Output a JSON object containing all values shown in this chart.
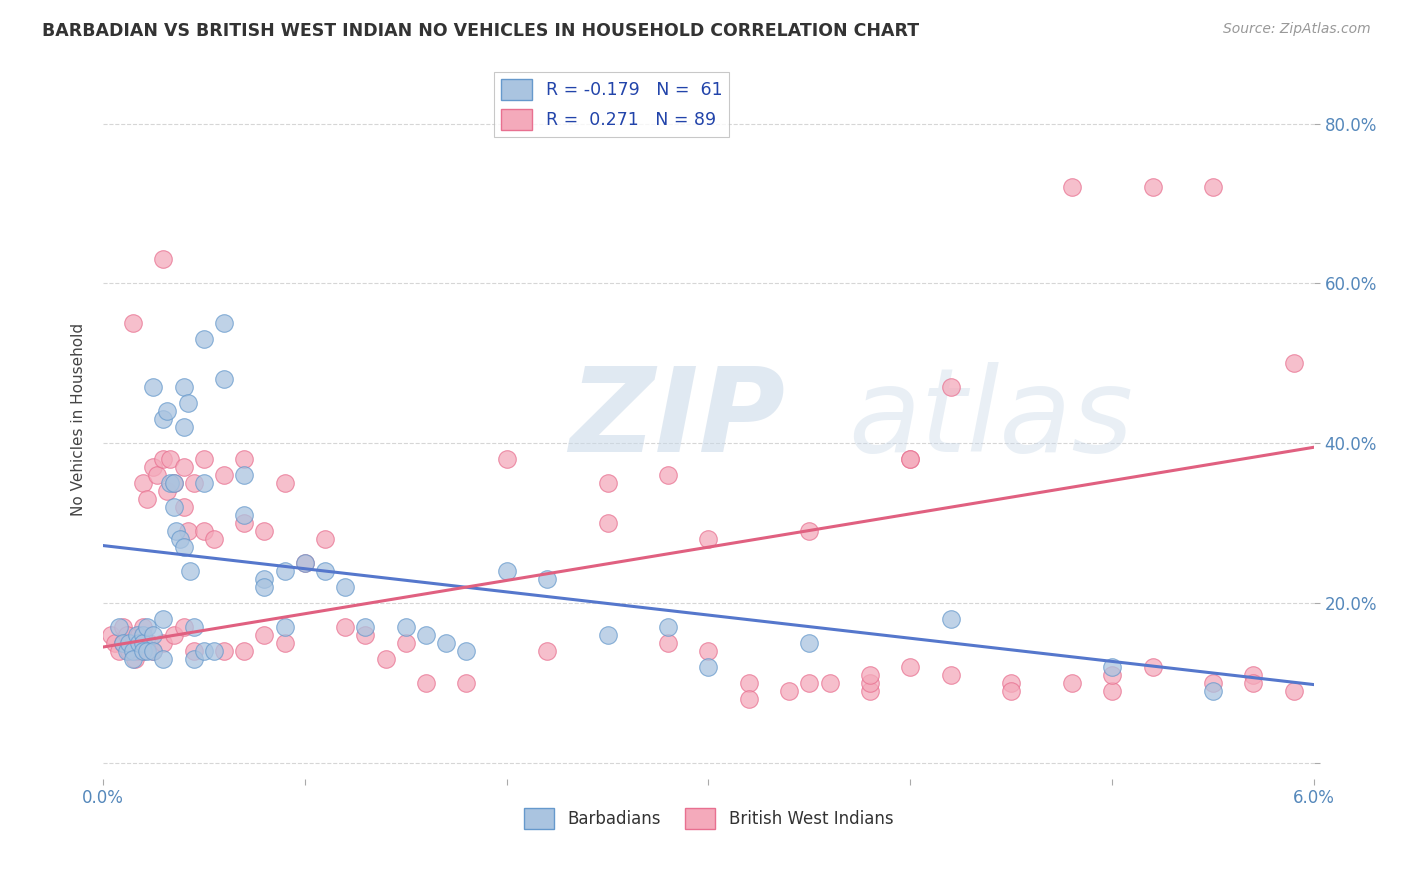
{
  "title": "BARBADIAN VS BRITISH WEST INDIAN NO VEHICLES IN HOUSEHOLD CORRELATION CHART",
  "source": "Source: ZipAtlas.com",
  "ylabel": "No Vehicles in Household",
  "xlim": [
    0.0,
    0.06
  ],
  "ylim": [
    -0.02,
    0.88
  ],
  "barbadian_color": "#aac4e0",
  "bwi_color": "#f4aabb",
  "barbadian_edge_color": "#6699cc",
  "bwi_edge_color": "#e87090",
  "barbadian_line_color": "#5577cc",
  "bwi_line_color": "#e06080",
  "watermark_zip": "ZIP",
  "watermark_atlas": "atlas",
  "barbadians_label": "Barbadians",
  "bwi_label": "British West Indians",
  "legend_r1": "R = -0.179",
  "legend_n1": "N =  61",
  "legend_r2": "R =  0.271",
  "legend_n2": "N = 89",
  "tick_color": "#5588bb",
  "title_color": "#333333",
  "source_color": "#999999",
  "grid_color": "#cccccc",
  "barb_line_x0": 0.0,
  "barb_line_x1": 0.06,
  "barb_line_y0": 0.272,
  "barb_line_y1": 0.098,
  "bwi_line_x0": 0.0,
  "bwi_line_x1": 0.06,
  "bwi_line_y0": 0.145,
  "bwi_line_y1": 0.395,
  "barbadian_scatter_x": [
    0.0008,
    0.001,
    0.0012,
    0.0013,
    0.0015,
    0.0015,
    0.0017,
    0.0018,
    0.002,
    0.002,
    0.002,
    0.0022,
    0.0022,
    0.0025,
    0.0025,
    0.0025,
    0.003,
    0.003,
    0.003,
    0.0032,
    0.0033,
    0.0035,
    0.0035,
    0.0036,
    0.0038,
    0.004,
    0.004,
    0.004,
    0.0042,
    0.0043,
    0.0045,
    0.0045,
    0.005,
    0.005,
    0.005,
    0.0055,
    0.006,
    0.006,
    0.007,
    0.007,
    0.008,
    0.008,
    0.009,
    0.009,
    0.01,
    0.011,
    0.012,
    0.013,
    0.015,
    0.016,
    0.017,
    0.018,
    0.02,
    0.022,
    0.025,
    0.028,
    0.03,
    0.035,
    0.042,
    0.05,
    0.055
  ],
  "barbadian_scatter_y": [
    0.17,
    0.15,
    0.14,
    0.15,
    0.14,
    0.13,
    0.16,
    0.15,
    0.16,
    0.15,
    0.14,
    0.17,
    0.14,
    0.47,
    0.16,
    0.14,
    0.43,
    0.18,
    0.13,
    0.44,
    0.35,
    0.35,
    0.32,
    0.29,
    0.28,
    0.47,
    0.42,
    0.27,
    0.45,
    0.24,
    0.17,
    0.13,
    0.53,
    0.35,
    0.14,
    0.14,
    0.55,
    0.48,
    0.36,
    0.31,
    0.23,
    0.22,
    0.24,
    0.17,
    0.25,
    0.24,
    0.22,
    0.17,
    0.17,
    0.16,
    0.15,
    0.14,
    0.24,
    0.23,
    0.16,
    0.17,
    0.12,
    0.15,
    0.18,
    0.12,
    0.09
  ],
  "bwi_scatter_x": [
    0.0004,
    0.0006,
    0.0008,
    0.001,
    0.001,
    0.0012,
    0.0013,
    0.0015,
    0.0015,
    0.0016,
    0.0017,
    0.0018,
    0.002,
    0.002,
    0.002,
    0.0022,
    0.0023,
    0.0025,
    0.0025,
    0.0027,
    0.003,
    0.003,
    0.003,
    0.0032,
    0.0033,
    0.0035,
    0.0035,
    0.004,
    0.004,
    0.004,
    0.0042,
    0.0045,
    0.0045,
    0.005,
    0.005,
    0.0055,
    0.006,
    0.006,
    0.007,
    0.007,
    0.007,
    0.008,
    0.008,
    0.009,
    0.009,
    0.01,
    0.011,
    0.012,
    0.013,
    0.014,
    0.015,
    0.016,
    0.018,
    0.02,
    0.022,
    0.025,
    0.028,
    0.03,
    0.032,
    0.035,
    0.038,
    0.04,
    0.042,
    0.045,
    0.048,
    0.05,
    0.052,
    0.055,
    0.057,
    0.059,
    0.03,
    0.035,
    0.038,
    0.04,
    0.042,
    0.045,
    0.048,
    0.05,
    0.052,
    0.055,
    0.057,
    0.059,
    0.025,
    0.028,
    0.032,
    0.034,
    0.036,
    0.038,
    0.04
  ],
  "bwi_scatter_y": [
    0.16,
    0.15,
    0.14,
    0.17,
    0.15,
    0.16,
    0.14,
    0.55,
    0.15,
    0.13,
    0.14,
    0.16,
    0.17,
    0.14,
    0.35,
    0.33,
    0.15,
    0.37,
    0.14,
    0.36,
    0.63,
    0.38,
    0.15,
    0.34,
    0.38,
    0.35,
    0.16,
    0.37,
    0.32,
    0.17,
    0.29,
    0.35,
    0.14,
    0.38,
    0.29,
    0.28,
    0.36,
    0.14,
    0.38,
    0.3,
    0.14,
    0.29,
    0.16,
    0.35,
    0.15,
    0.25,
    0.28,
    0.17,
    0.16,
    0.13,
    0.15,
    0.1,
    0.1,
    0.38,
    0.14,
    0.35,
    0.36,
    0.14,
    0.1,
    0.1,
    0.09,
    0.38,
    0.47,
    0.1,
    0.72,
    0.09,
    0.72,
    0.72,
    0.11,
    0.5,
    0.28,
    0.29,
    0.1,
    0.38,
    0.11,
    0.09,
    0.1,
    0.11,
    0.12,
    0.1,
    0.1,
    0.09,
    0.3,
    0.15,
    0.08,
    0.09,
    0.1,
    0.11,
    0.12
  ]
}
